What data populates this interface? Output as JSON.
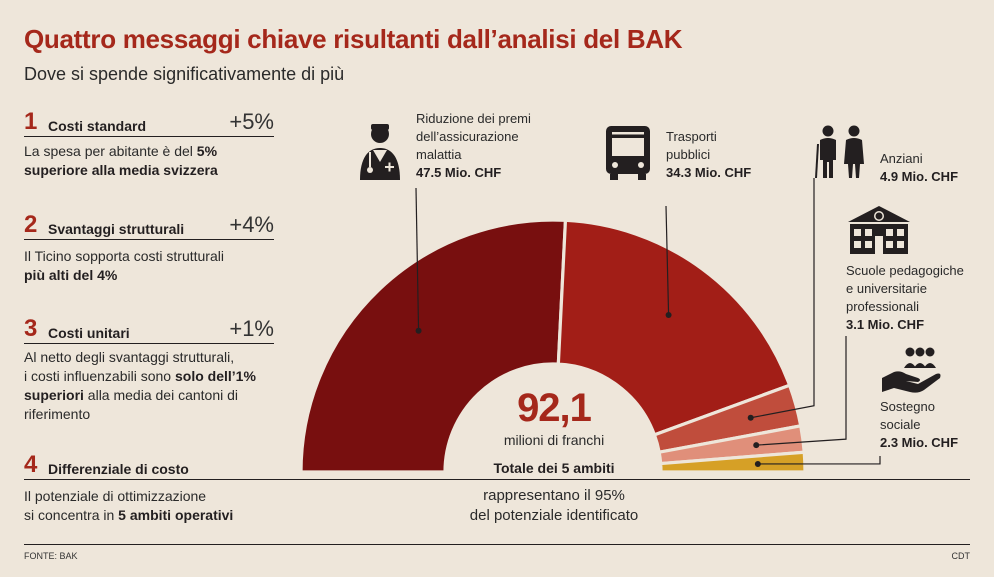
{
  "header": {
    "title": "Quattro messaggi chiave risultanti dall’analisi del BAK",
    "subtitle": "Dove si spende significativamente di più"
  },
  "messages": [
    {
      "num": "1",
      "title": "Costi standard",
      "pct": "+5%",
      "body": [
        {
          "t": "La spesa per abitante è del ",
          "b": false
        },
        {
          "t": "5%",
          "b": true
        },
        {
          "t": "\n",
          "b": false
        },
        {
          "t": "superiore alla media svizzera",
          "b": true
        }
      ]
    },
    {
      "num": "2",
      "title": "Svantaggi strutturali",
      "pct": "+4%",
      "body": [
        {
          "t": "Il Ticino sopporta costi strutturali\n",
          "b": false
        },
        {
          "t": "più alti del 4%",
          "b": true
        }
      ]
    },
    {
      "num": "3",
      "title": "Costi unitari",
      "pct": "+1%",
      "body": [
        {
          "t": "Al netto degli svantaggi strutturali,\ni costi influenzabili sono ",
          "b": false
        },
        {
          "t": "solo dell’1%",
          "b": true
        },
        {
          "t": "\n",
          "b": false
        },
        {
          "t": "superiori",
          "b": true
        },
        {
          "t": " alla media dei cantoni di\nriferimento",
          "b": false
        }
      ]
    },
    {
      "num": "4",
      "title": "Differenziale di costo",
      "pct": "",
      "body": [
        {
          "t": "Il potenziale di ottimizzazione\nsi concentra in ",
          "b": false
        },
        {
          "t": "5 ambiti operativi",
          "b": true
        }
      ]
    }
  ],
  "center": {
    "value": "92,1",
    "unit": "milioni di franchi",
    "total_label": "Totale dei 5 ambiti",
    "share_note": "rappresentano il 95%\ndel potenziale identificato"
  },
  "chart_data": {
    "type": "pie",
    "variant": "half-donut",
    "title": "Totale dei 5 ambiti",
    "unit": "Mio. CHF",
    "total": 92.1,
    "categories": [
      "Riduzione dei premi dell’assicurazione malattia",
      "Trasporti pubblici",
      "Anziani",
      "Scuole pedagogiche e universitarie professionali",
      "Sostegno sociale"
    ],
    "values": [
      47.5,
      34.3,
      4.9,
      3.1,
      2.3
    ],
    "labels": [
      {
        "name": "Riduzione dei premi\ndell’assicurazione\nmalattia",
        "value": "47.5 Mio. CHF",
        "icon": "doctor-icon"
      },
      {
        "name": "Trasporti\npubblici",
        "value": "34.3 Mio. CHF",
        "icon": "bus-icon"
      },
      {
        "name": "Anziani",
        "value": "4.9 Mio. CHF",
        "icon": "elderly-couple-icon"
      },
      {
        "name": "Scuole pedagogiche\ne universitarie\nprofessionali",
        "value": "3.1 Mio. CHF",
        "icon": "school-building-icon"
      },
      {
        "name": "Sostegno\nsociale",
        "value": "2.3 Mio. CHF",
        "icon": "helping-hand-icon"
      }
    ],
    "colors": [
      "#780f0f",
      "#a21e17",
      "#c04d3c",
      "#e08f7a",
      "#d6a026"
    ]
  },
  "footer": {
    "source": "FONTE: BAK",
    "credit": "CDT"
  },
  "colors": {
    "accent": "#a5281b",
    "background": "#eee6da"
  }
}
